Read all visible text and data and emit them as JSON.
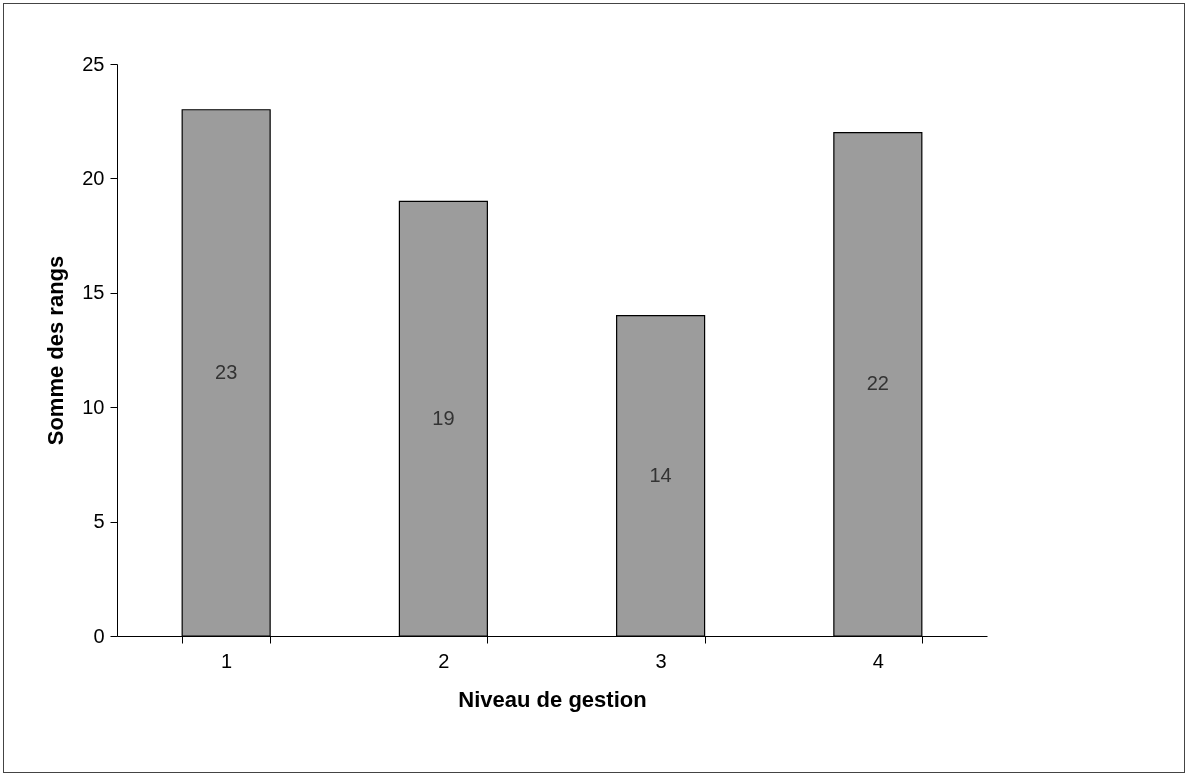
{
  "chart_data": {
    "type": "bar",
    "xlabel": "Niveau de gestion",
    "ylabel": "Somme des rangs",
    "categories": [
      "1",
      "2",
      "3",
      "4"
    ],
    "values": [
      23,
      19,
      14,
      22
    ],
    "color": "#9c9c9c",
    "ylim": [
      0,
      25
    ],
    "yticks": [
      0,
      5,
      10,
      15,
      20,
      25
    ],
    "data_labels": true
  }
}
